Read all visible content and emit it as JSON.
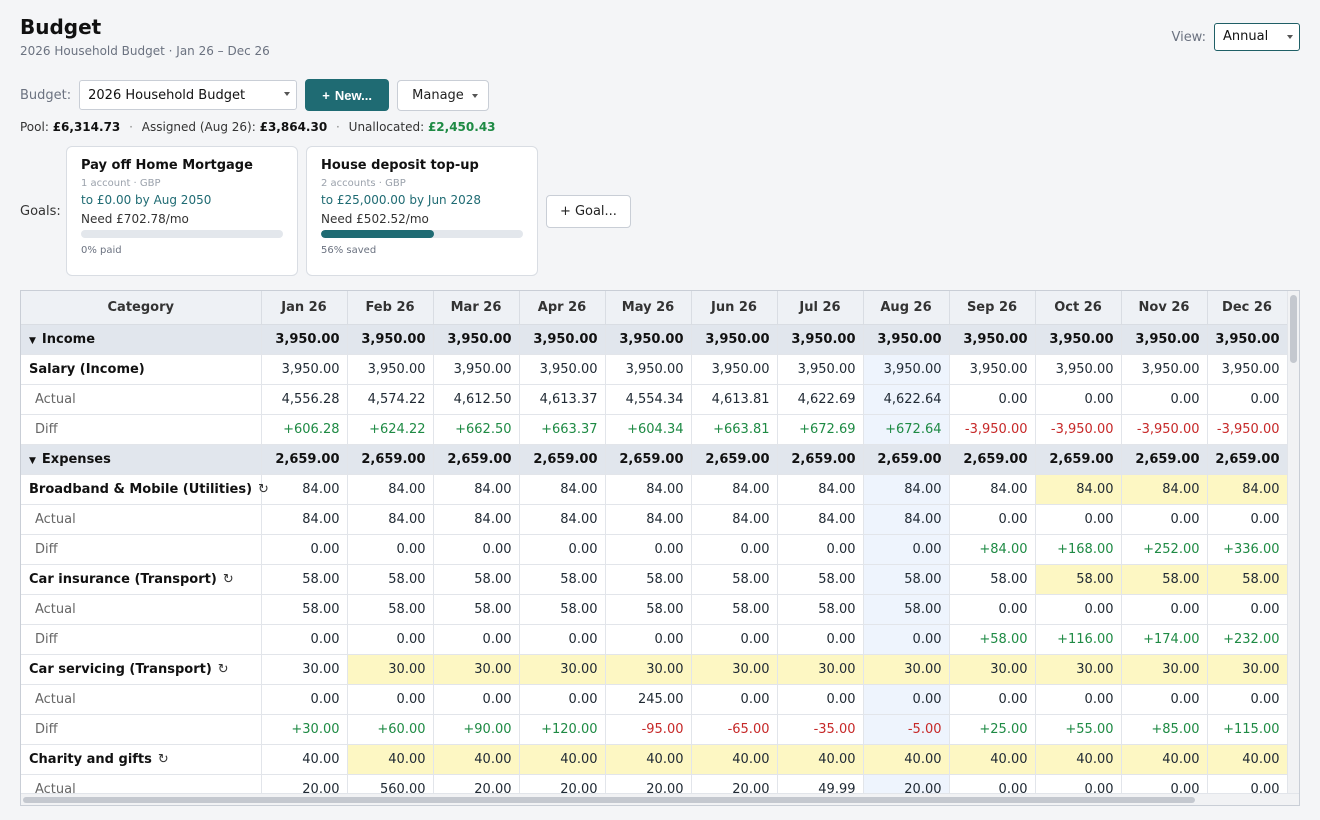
{
  "header": {
    "title": "Budget",
    "subtitle": "2026 Household Budget · Jan 26 – Dec 26"
  },
  "view": {
    "label": "View:",
    "value": "Annual"
  },
  "budget_bar": {
    "label": "Budget:",
    "selected": "2026 Household Budget",
    "new_label": "New...",
    "new_prefix": "+",
    "manage_label": "Manage"
  },
  "summary": {
    "pool_label": "Pool:",
    "pool_value": "£6,314.73",
    "assigned_label": "Assigned (Aug 26):",
    "assigned_value": "£3,864.30",
    "unallocated_label": "Unallocated:",
    "unallocated_value": "£2,450.43"
  },
  "goals": {
    "label": "Goals:",
    "add_label": "Goal...",
    "items": [
      {
        "name": "Pay off Home Mortgage",
        "meta": "1 account · GBP",
        "target": "to £0.00 by Aug 2050",
        "need": "Need £702.78/mo",
        "progress": 0,
        "foot": "0% paid"
      },
      {
        "name": "House deposit top-up",
        "meta": "2 accounts · GBP",
        "target": "to £25,000.00 by Jun 2028",
        "need": "Need £502.52/mo",
        "progress": 56,
        "foot": "56% saved"
      }
    ]
  },
  "table": {
    "category_header": "Category",
    "months": [
      "Jan 26",
      "Feb 26",
      "Mar 26",
      "Apr 26",
      "May 26",
      "Jun 26",
      "Jul 26",
      "Aug 26",
      "Sep 26",
      "Oct 26",
      "Nov 26",
      "Dec 26"
    ],
    "current_month_index": 7,
    "rows": [
      {
        "type": "group",
        "label": "Income",
        "values": [
          "3,950.00",
          "3,950.00",
          "3,950.00",
          "3,950.00",
          "3,950.00",
          "3,950.00",
          "3,950.00",
          "3,950.00",
          "3,950.00",
          "3,950.00",
          "3,950.00",
          "3,950.00"
        ]
      },
      {
        "type": "category",
        "label": "Salary (Income)",
        "recurring": false,
        "values": [
          "3,950.00",
          "3,950.00",
          "3,950.00",
          "3,950.00",
          "3,950.00",
          "3,950.00",
          "3,950.00",
          "3,950.00",
          "3,950.00",
          "3,950.00",
          "3,950.00",
          "3,950.00"
        ],
        "highlight": []
      },
      {
        "type": "actual",
        "label": "Actual",
        "values": [
          "4,556.28",
          "4,574.22",
          "4,612.50",
          "4,613.37",
          "4,554.34",
          "4,613.81",
          "4,622.69",
          "4,622.64",
          "0.00",
          "0.00",
          "0.00",
          "0.00"
        ]
      },
      {
        "type": "diff",
        "label": "Diff",
        "values": [
          "+606.28",
          "+624.22",
          "+662.50",
          "+663.37",
          "+604.34",
          "+663.81",
          "+672.69",
          "+672.64",
          "-3,950.00",
          "-3,950.00",
          "-3,950.00",
          "-3,950.00"
        ]
      },
      {
        "type": "group",
        "label": "Expenses",
        "values": [
          "2,659.00",
          "2,659.00",
          "2,659.00",
          "2,659.00",
          "2,659.00",
          "2,659.00",
          "2,659.00",
          "2,659.00",
          "2,659.00",
          "2,659.00",
          "2,659.00",
          "2,659.00"
        ]
      },
      {
        "type": "category",
        "label": "Broadband & Mobile (Utilities)",
        "recurring": true,
        "values": [
          "84.00",
          "84.00",
          "84.00",
          "84.00",
          "84.00",
          "84.00",
          "84.00",
          "84.00",
          "84.00",
          "84.00",
          "84.00",
          "84.00"
        ],
        "highlight": [
          9,
          10,
          11
        ]
      },
      {
        "type": "actual",
        "label": "Actual",
        "values": [
          "84.00",
          "84.00",
          "84.00",
          "84.00",
          "84.00",
          "84.00",
          "84.00",
          "84.00",
          "0.00",
          "0.00",
          "0.00",
          "0.00"
        ]
      },
      {
        "type": "diff",
        "label": "Diff",
        "values": [
          "0.00",
          "0.00",
          "0.00",
          "0.00",
          "0.00",
          "0.00",
          "0.00",
          "0.00",
          "+84.00",
          "+168.00",
          "+252.00",
          "+336.00"
        ]
      },
      {
        "type": "category",
        "label": "Car insurance (Transport)",
        "recurring": true,
        "values": [
          "58.00",
          "58.00",
          "58.00",
          "58.00",
          "58.00",
          "58.00",
          "58.00",
          "58.00",
          "58.00",
          "58.00",
          "58.00",
          "58.00"
        ],
        "highlight": [
          9,
          10,
          11
        ]
      },
      {
        "type": "actual",
        "label": "Actual",
        "values": [
          "58.00",
          "58.00",
          "58.00",
          "58.00",
          "58.00",
          "58.00",
          "58.00",
          "58.00",
          "0.00",
          "0.00",
          "0.00",
          "0.00"
        ]
      },
      {
        "type": "diff",
        "label": "Diff",
        "values": [
          "0.00",
          "0.00",
          "0.00",
          "0.00",
          "0.00",
          "0.00",
          "0.00",
          "0.00",
          "+58.00",
          "+116.00",
          "+174.00",
          "+232.00"
        ]
      },
      {
        "type": "category",
        "label": "Car servicing (Transport)",
        "recurring": true,
        "values": [
          "30.00",
          "30.00",
          "30.00",
          "30.00",
          "30.00",
          "30.00",
          "30.00",
          "30.00",
          "30.00",
          "30.00",
          "30.00",
          "30.00"
        ],
        "highlight": [
          1,
          2,
          3,
          4,
          5,
          6,
          7,
          8,
          9,
          10,
          11
        ]
      },
      {
        "type": "actual",
        "label": "Actual",
        "values": [
          "0.00",
          "0.00",
          "0.00",
          "0.00",
          "245.00",
          "0.00",
          "0.00",
          "0.00",
          "0.00",
          "0.00",
          "0.00",
          "0.00"
        ]
      },
      {
        "type": "diff",
        "label": "Diff",
        "values": [
          "+30.00",
          "+60.00",
          "+90.00",
          "+120.00",
          "-95.00",
          "-65.00",
          "-35.00",
          "-5.00",
          "+25.00",
          "+55.00",
          "+85.00",
          "+115.00"
        ]
      },
      {
        "type": "category",
        "label": "Charity and gifts",
        "recurring": true,
        "values": [
          "40.00",
          "40.00",
          "40.00",
          "40.00",
          "40.00",
          "40.00",
          "40.00",
          "40.00",
          "40.00",
          "40.00",
          "40.00",
          "40.00"
        ],
        "highlight": [
          1,
          2,
          3,
          4,
          5,
          6,
          7,
          8,
          9,
          10,
          11
        ]
      },
      {
        "type": "actual",
        "label": "Actual",
        "values": [
          "20.00",
          "560.00",
          "20.00",
          "20.00",
          "20.00",
          "20.00",
          "49.99",
          "20.00",
          "0.00",
          "0.00",
          "0.00",
          "0.00"
        ]
      }
    ]
  }
}
